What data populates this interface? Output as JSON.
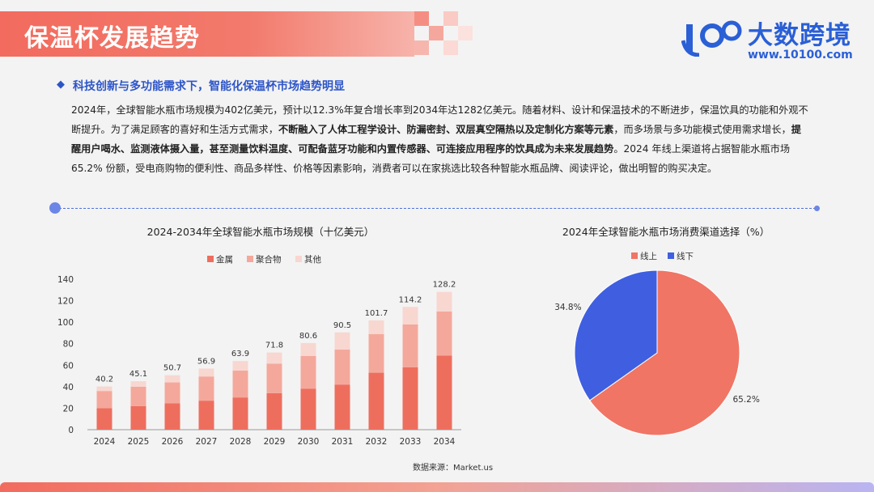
{
  "header": {
    "title": "保温杯发展趋势",
    "logo_text": "大数跨境",
    "logo_url": "www.10100.com",
    "logo_mark": "k100-logo",
    "accent": "#f26b5e",
    "brand_blue": "#2a5fd6"
  },
  "content": {
    "subhead": "科技创新与多功能需求下，智能化保温杯市场趋势明显",
    "paragraph": [
      {
        "text": "2024年，全球智能水瓶市场规模为402亿美元，预计以12.3%年复合增长率到2034年达1282亿美元。随着材料、设计和保温技术的不断进步，保温饮具的功能和外观不断提升。为了满足顾客的喜好和生活方式需求，",
        "bold": false
      },
      {
        "text": "不断融入了人体工程学设计、防漏密封、双层真空隔热以及定制化方案等元素",
        "bold": true
      },
      {
        "text": "，而多场景与多功能模式使用需求增长，",
        "bold": false
      },
      {
        "text": "提醒用户喝水、监测液体摄入量，甚至测量饮料温度、可配备蓝牙功能和内置传感器、可连接应用程序的饮具成为未来发展趋势",
        "bold": true
      },
      {
        "text": "。2024 年线上渠道将占据智能水瓶市场 65.2% 份额，受电商购物的便利性、商品多样性、价格等因素影响，消费者可以在家挑选比较各种智能水瓶品牌、阅读评论，做出明智的购买决定。",
        "bold": false
      }
    ],
    "source": "数据来源：Market.us"
  },
  "chart_data": [
    {
      "type": "bar",
      "stacked": true,
      "title": "2024-2034年全球智能水瓶市场规模（十亿美元）",
      "categories": [
        "2024",
        "2025",
        "2026",
        "2027",
        "2028",
        "2029",
        "2030",
        "2031",
        "2032",
        "2033",
        "2034"
      ],
      "series": [
        {
          "name": "金属",
          "color": "#ee6e5e",
          "values": [
            20,
            22,
            24.5,
            27,
            30,
            34,
            38,
            42,
            53,
            58,
            69
          ]
        },
        {
          "name": "聚合物",
          "color": "#f4a89b",
          "values": [
            16,
            18,
            19.5,
            22.5,
            25,
            27.5,
            30.5,
            32.5,
            36,
            40,
            41
          ]
        },
        {
          "name": "其他",
          "color": "#f8d7d1",
          "values": [
            4.2,
            5.1,
            6.7,
            7.4,
            8.9,
            10.3,
            12.1,
            16,
            12.7,
            16.2,
            18.2
          ]
        }
      ],
      "totals": [
        "40.2",
        "45.1",
        "50.7",
        "56.9",
        "63.9",
        "71.8",
        "80.6",
        "90.5",
        "101.7",
        "114.2",
        "128.2"
      ],
      "ylim": [
        0,
        140
      ],
      "yticks": [
        "0",
        "20",
        "40",
        "60",
        "80",
        "100",
        "120",
        "140"
      ],
      "legend": "top-center",
      "grid": false
    },
    {
      "type": "pie",
      "title": "2024年全球智能水瓶市场消费渠道选择（%）",
      "slices": [
        {
          "name": "线上",
          "value": 65.2,
          "label": "65.2%",
          "color": "#f07565"
        },
        {
          "name": "线下",
          "value": 34.8,
          "label": "34.8%",
          "color": "#3f5fe0"
        }
      ],
      "legend": "top-center"
    }
  ]
}
